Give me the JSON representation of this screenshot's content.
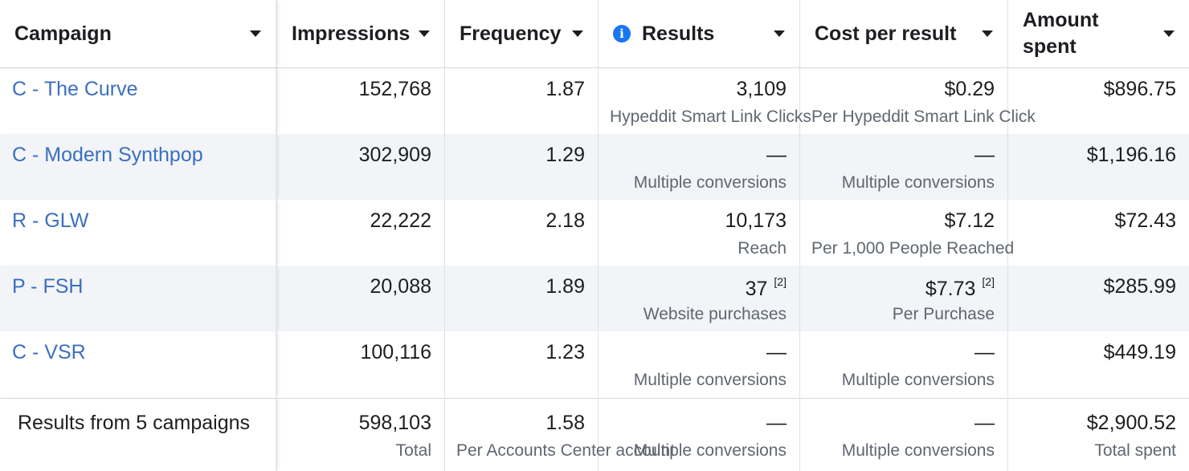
{
  "header": {
    "campaign": "Campaign",
    "impressions": "Impressions",
    "frequency": "Frequency",
    "results": "Results",
    "cost_per_result": "Cost per result",
    "amount_spent": "Amount spent"
  },
  "rows": [
    {
      "campaign": "C - The Curve",
      "impressions": "152,768",
      "frequency": "1.87",
      "results": "3,109",
      "results_sub": "Hypeddit Smart Link Clicks",
      "cost": "$0.29",
      "cost_sub": "Per Hypeddit Smart Link Click",
      "spent": "$896.75"
    },
    {
      "campaign": "C - Modern Synthpop",
      "impressions": "302,909",
      "frequency": "1.29",
      "results": "—",
      "results_sub": "Multiple conversions",
      "cost": "—",
      "cost_sub": "Multiple conversions",
      "spent": "$1,196.16"
    },
    {
      "campaign": "R - GLW",
      "impressions": "22,222",
      "frequency": "2.18",
      "results": "10,173",
      "results_sub": "Reach",
      "cost": "$7.12",
      "cost_sub": "Per 1,000 People Reached",
      "spent": "$72.43"
    },
    {
      "campaign": "P - FSH",
      "impressions": "20,088",
      "frequency": "1.89",
      "results": "37",
      "results_note": "[2]",
      "results_sub": "Website purchases",
      "cost": "$7.73",
      "cost_note": "[2]",
      "cost_sub": "Per Purchase",
      "spent": "$285.99"
    },
    {
      "campaign": "C - VSR",
      "impressions": "100,116",
      "frequency": "1.23",
      "results": "—",
      "results_sub": "Multiple conversions",
      "cost": "—",
      "cost_sub": "Multiple conversions",
      "spent": "$449.19"
    }
  ],
  "footer": {
    "label": "Results from 5 campaigns",
    "impressions": "598,103",
    "impressions_sub": "Total",
    "frequency": "1.58",
    "frequency_sub": "Per Accounts Center account",
    "results": "—",
    "results_sub": "Multiple conversions",
    "cost": "—",
    "cost_sub": "Multiple conversions",
    "spent": "$2,900.52",
    "spent_sub": "Total spent"
  },
  "colors": {
    "link": "#3b6fbf",
    "info_icon": "#1877f2",
    "stripe": "#f2f4f7"
  },
  "icons": {
    "results_info": "info-icon",
    "sort": "caret-down-icon"
  }
}
